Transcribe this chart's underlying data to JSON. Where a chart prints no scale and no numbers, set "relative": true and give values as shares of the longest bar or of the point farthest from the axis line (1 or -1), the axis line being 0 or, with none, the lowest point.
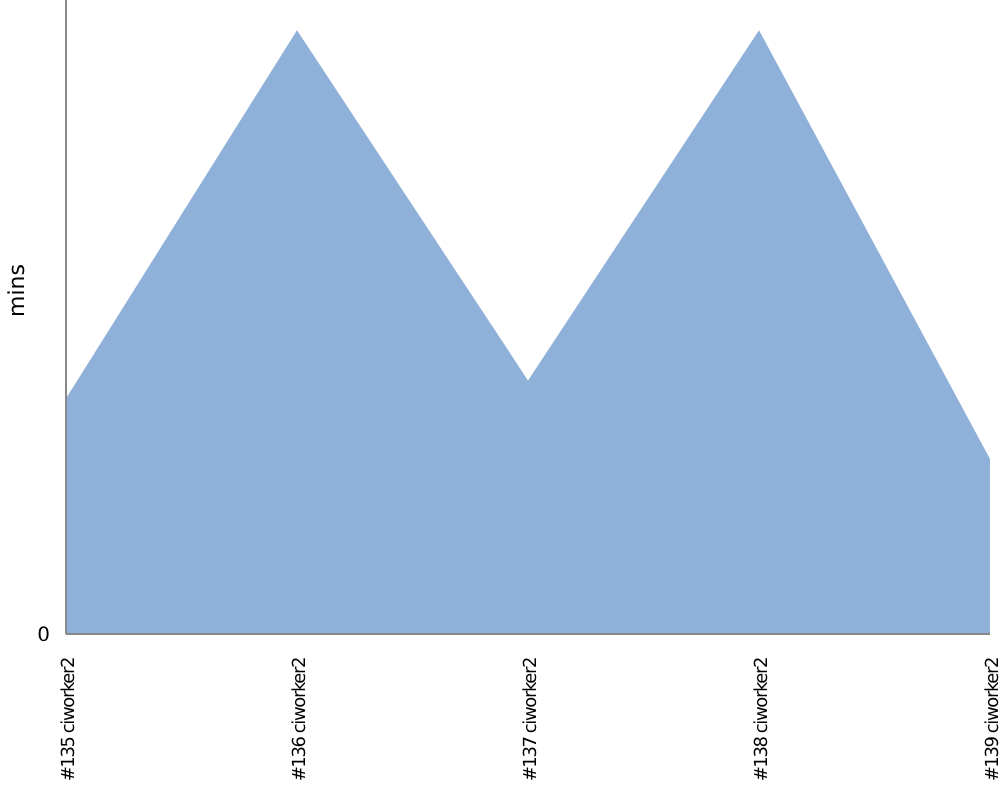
{
  "chart_data": {
    "type": "area",
    "relative": true,
    "ylabel": "mins",
    "annotations": [
      "0"
    ],
    "categories": [
      "#135 ciworker2",
      "#136 ciworker2",
      "#137 ciworker2",
      "#138 ciworker2",
      "#139 ciworker2"
    ],
    "series": [
      {
        "color": "#8fb1d9",
        "values": [
          0.39,
          1,
          0.42,
          1,
          0.29
        ]
      }
    ],
    "grid": false,
    "legend": false
  }
}
